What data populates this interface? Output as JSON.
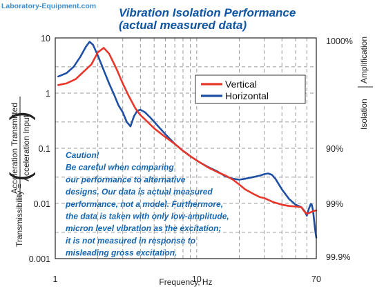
{
  "brand": {
    "text": "Laboratory-Equipment.com"
  },
  "chart_data": {
    "type": "line",
    "title": "Vibration Isolation Performance",
    "subtitle": "(actual measured data)",
    "xlabel": "Frequency, Hz",
    "ylabel_prefix": "Transmissibility = ",
    "ylabel_numerator": "Acceleration Transmitted",
    "ylabel_denominator": "Acceleration Input",
    "right_label_isolation": "Isolation",
    "right_label_amplification": "Amplification",
    "x_scale": "log",
    "y_scale": "log",
    "xlim": [
      1,
      70
    ],
    "ylim": [
      0.001,
      10
    ],
    "x_ticks": [
      {
        "value": 1,
        "label": "1"
      },
      {
        "value": 10,
        "label": "10"
      },
      {
        "value": 70,
        "label": "70"
      }
    ],
    "y_ticks": [
      {
        "value": 10,
        "label": "10"
      },
      {
        "value": 1,
        "label": "1"
      },
      {
        "value": 0.1,
        "label": "0.1"
      },
      {
        "value": 0.01,
        "label": "0.01"
      },
      {
        "value": 0.001,
        "label": "0.001"
      }
    ],
    "right_ticks": [
      {
        "value": 10,
        "label": "1000%"
      },
      {
        "value": 0.1,
        "label": "90%"
      },
      {
        "value": 0.01,
        "label": "99%"
      },
      {
        "value": 0.001,
        "label": "99.9%"
      }
    ],
    "grid": true,
    "legend_position": "top-right",
    "series": [
      {
        "name": "Vertical",
        "color": "#e8362a",
        "points": [
          [
            1.05,
            1.4
          ],
          [
            1.2,
            1.5
          ],
          [
            1.4,
            1.8
          ],
          [
            1.6,
            2.5
          ],
          [
            1.8,
            3.3
          ],
          [
            2.0,
            5.5
          ],
          [
            2.2,
            6.6
          ],
          [
            2.4,
            5.2
          ],
          [
            2.7,
            2.8
          ],
          [
            3.0,
            1.5
          ],
          [
            3.3,
            0.9
          ],
          [
            3.7,
            0.52
          ],
          [
            4.0,
            0.4
          ],
          [
            4.5,
            0.3
          ],
          [
            5.0,
            0.23
          ],
          [
            6.0,
            0.16
          ],
          [
            7.0,
            0.12
          ],
          [
            8.0,
            0.09
          ],
          [
            9.0,
            0.072
          ],
          [
            10.0,
            0.06
          ],
          [
            12.0,
            0.045
          ],
          [
            14.0,
            0.037
          ],
          [
            16.0,
            0.032
          ],
          [
            18.0,
            0.027
          ],
          [
            20.0,
            0.022
          ],
          [
            22.0,
            0.018
          ],
          [
            25.0,
            0.015
          ],
          [
            28.0,
            0.013
          ],
          [
            30.0,
            0.0125
          ],
          [
            35.0,
            0.0105
          ],
          [
            40.0,
            0.0095
          ],
          [
            45.0,
            0.009
          ],
          [
            50.0,
            0.0088
          ],
          [
            55.0,
            0.0085
          ],
          [
            58.0,
            0.007
          ],
          [
            60.0,
            0.0065
          ],
          [
            63.0,
            0.0068
          ],
          [
            66.0,
            0.0072
          ],
          [
            70.0,
            0.0075
          ]
        ]
      },
      {
        "name": "Horizontal",
        "color": "#1e4fa3",
        "points": [
          [
            1.05,
            2.0
          ],
          [
            1.2,
            2.3
          ],
          [
            1.35,
            3.0
          ],
          [
            1.5,
            4.5
          ],
          [
            1.65,
            7.0
          ],
          [
            1.75,
            8.5
          ],
          [
            1.85,
            7.5
          ],
          [
            2.0,
            4.8
          ],
          [
            2.2,
            2.6
          ],
          [
            2.4,
            1.5
          ],
          [
            2.6,
            0.95
          ],
          [
            2.8,
            0.6
          ],
          [
            3.0,
            0.45
          ],
          [
            3.2,
            0.3
          ],
          [
            3.4,
            0.25
          ],
          [
            3.6,
            0.38
          ],
          [
            3.8,
            0.48
          ],
          [
            4.0,
            0.5
          ],
          [
            4.3,
            0.45
          ],
          [
            4.7,
            0.36
          ],
          [
            5.2,
            0.27
          ],
          [
            6.0,
            0.18
          ],
          [
            7.0,
            0.12
          ],
          [
            8.0,
            0.09
          ],
          [
            9.0,
            0.072
          ],
          [
            10.0,
            0.06
          ],
          [
            11.0,
            0.052
          ],
          [
            12.0,
            0.046
          ],
          [
            14.0,
            0.038
          ],
          [
            16.0,
            0.031
          ],
          [
            18.0,
            0.028
          ],
          [
            20.0,
            0.027
          ],
          [
            22.0,
            0.028
          ],
          [
            25.0,
            0.03
          ],
          [
            28.0,
            0.032
          ],
          [
            30.0,
            0.034
          ],
          [
            32.0,
            0.035
          ],
          [
            34.0,
            0.033
          ],
          [
            36.0,
            0.028
          ],
          [
            40.0,
            0.018
          ],
          [
            45.0,
            0.012
          ],
          [
            50.0,
            0.0095
          ],
          [
            55.0,
            0.0085
          ],
          [
            58.0,
            0.0072
          ],
          [
            60.0,
            0.006
          ],
          [
            62.0,
            0.008
          ],
          [
            64.0,
            0.0098
          ],
          [
            65.0,
            0.0095
          ],
          [
            66.0,
            0.008
          ],
          [
            67.0,
            0.006
          ],
          [
            68.5,
            0.0035
          ],
          [
            70.0,
            0.0024
          ]
        ]
      }
    ],
    "annotation": [
      "Caution!",
      "Be careful when comparing",
      "our performance to alternative",
      "designs. Our data is actual measured",
      "performance, not a model. Furthermore,",
      "the data is taken with only low-amplitude,",
      "micron level vibration as the excitation;",
      "it is not measured in response to",
      "misleading gross excitation."
    ]
  }
}
